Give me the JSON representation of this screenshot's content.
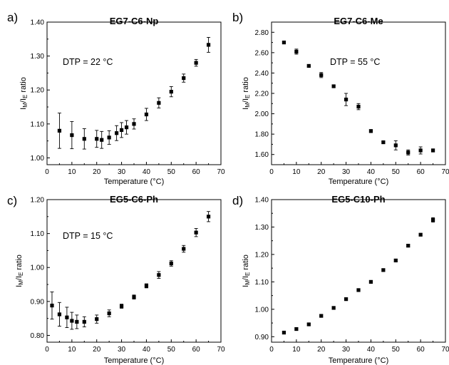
{
  "chart_data": [
    {
      "panel": "a)",
      "type": "scatter",
      "title": "EG7-C6-Np",
      "annotation": "DTP = 22 °C",
      "xlabel": "Temperature (°C)",
      "ylabel_main": "I",
      "ylabel_sub1": "M",
      "ylabel_sep": "/I",
      "ylabel_sub2": "E",
      "ylabel_end": " ratio",
      "xlim": [
        0,
        70
      ],
      "ylim": [
        0.98,
        1.4
      ],
      "xticks": [
        0,
        10,
        20,
        30,
        40,
        50,
        60,
        70
      ],
      "yticks": [
        1.0,
        1.1,
        1.2,
        1.3,
        1.4
      ],
      "ytick_labels": [
        "1.00",
        "1.10",
        "1.20",
        "1.30",
        "1.40"
      ],
      "points": [
        {
          "x": 5,
          "y": 1.08,
          "err": 0.052
        },
        {
          "x": 10,
          "y": 1.067,
          "err": 0.04
        },
        {
          "x": 15,
          "y": 1.056,
          "err": 0.03
        },
        {
          "x": 20,
          "y": 1.056,
          "err": 0.025
        },
        {
          "x": 22,
          "y": 1.053,
          "err": 0.025
        },
        {
          "x": 25,
          "y": 1.06,
          "err": 0.02
        },
        {
          "x": 28,
          "y": 1.073,
          "err": 0.022
        },
        {
          "x": 30,
          "y": 1.082,
          "err": 0.022
        },
        {
          "x": 32,
          "y": 1.09,
          "err": 0.02
        },
        {
          "x": 35,
          "y": 1.1,
          "err": 0.015
        },
        {
          "x": 40,
          "y": 1.128,
          "err": 0.018
        },
        {
          "x": 45,
          "y": 1.162,
          "err": 0.015
        },
        {
          "x": 50,
          "y": 1.195,
          "err": 0.015
        },
        {
          "x": 55,
          "y": 1.235,
          "err": 0.012
        },
        {
          "x": 60,
          "y": 1.28,
          "err": 0.01
        },
        {
          "x": 65,
          "y": 1.333,
          "err": 0.022
        }
      ]
    },
    {
      "panel": "b)",
      "type": "scatter",
      "title": "EG7-C6-Me",
      "annotation": "DTP = 55 °C",
      "xlabel": "Temperature (°C)",
      "ylabel_main": "I",
      "ylabel_sub1": "M",
      "ylabel_sep": "/I",
      "ylabel_sub2": "E",
      "ylabel_end": " ratio",
      "xlim": [
        0,
        70
      ],
      "ylim": [
        1.5,
        2.9
      ],
      "xticks": [
        0,
        10,
        20,
        30,
        40,
        50,
        60,
        70
      ],
      "yticks": [
        1.6,
        1.8,
        2.0,
        2.2,
        2.4,
        2.6,
        2.8
      ],
      "ytick_labels": [
        "1.60",
        "1.80",
        "2.00",
        "2.20",
        "2.40",
        "2.60",
        "2.80"
      ],
      "points": [
        {
          "x": 5,
          "y": 2.7,
          "err": 0.01
        },
        {
          "x": 10,
          "y": 2.61,
          "err": 0.025
        },
        {
          "x": 15,
          "y": 2.47,
          "err": 0.01
        },
        {
          "x": 20,
          "y": 2.38,
          "err": 0.025
        },
        {
          "x": 25,
          "y": 2.27,
          "err": 0.01
        },
        {
          "x": 30,
          "y": 2.14,
          "err": 0.06
        },
        {
          "x": 35,
          "y": 2.07,
          "err": 0.03
        },
        {
          "x": 40,
          "y": 1.83,
          "err": 0.015
        },
        {
          "x": 45,
          "y": 1.72,
          "err": 0.01
        },
        {
          "x": 50,
          "y": 1.69,
          "err": 0.045
        },
        {
          "x": 55,
          "y": 1.62,
          "err": 0.025
        },
        {
          "x": 60,
          "y": 1.64,
          "err": 0.035
        },
        {
          "x": 65,
          "y": 1.64,
          "err": 0.015
        }
      ]
    },
    {
      "panel": "c)",
      "type": "scatter",
      "title": "EG5-C6-Ph",
      "annotation": "DTP = 15 °C",
      "xlabel": "Temperature (°C)",
      "ylabel_main": "I",
      "ylabel_sub1": "M",
      "ylabel_sep": "/I",
      "ylabel_sub2": "E",
      "ylabel_end": " ratio",
      "xlim": [
        0,
        70
      ],
      "ylim": [
        0.78,
        1.2
      ],
      "xticks": [
        0,
        10,
        20,
        30,
        40,
        50,
        60,
        70
      ],
      "yticks": [
        0.8,
        0.9,
        1.0,
        1.1,
        1.2
      ],
      "ytick_labels": [
        "0.80",
        "0.90",
        "1.00",
        "1.10",
        "1.20"
      ],
      "points": [
        {
          "x": 2,
          "y": 0.888,
          "err": 0.04
        },
        {
          "x": 5,
          "y": 0.862,
          "err": 0.035
        },
        {
          "x": 8,
          "y": 0.853,
          "err": 0.03
        },
        {
          "x": 10,
          "y": 0.843,
          "err": 0.025
        },
        {
          "x": 12,
          "y": 0.84,
          "err": 0.02
        },
        {
          "x": 15,
          "y": 0.84,
          "err": 0.015
        },
        {
          "x": 20,
          "y": 0.848,
          "err": 0.012
        },
        {
          "x": 25,
          "y": 0.865,
          "err": 0.01
        },
        {
          "x": 30,
          "y": 0.886,
          "err": 0.006
        },
        {
          "x": 35,
          "y": 0.913,
          "err": 0.006
        },
        {
          "x": 40,
          "y": 0.946,
          "err": 0.006
        },
        {
          "x": 45,
          "y": 0.978,
          "err": 0.01
        },
        {
          "x": 50,
          "y": 1.012,
          "err": 0.008
        },
        {
          "x": 55,
          "y": 1.055,
          "err": 0.01
        },
        {
          "x": 60,
          "y": 1.103,
          "err": 0.012
        },
        {
          "x": 65,
          "y": 1.15,
          "err": 0.015
        }
      ]
    },
    {
      "panel": "d)",
      "type": "scatter",
      "title": "EG5-C10-Ph",
      "annotation": "",
      "xlabel": "Temperature (°C)",
      "ylabel_main": "I",
      "ylabel_sub1": "M",
      "ylabel_sep": "/I",
      "ylabel_sub2": "E",
      "ylabel_end": " ratio",
      "xlim": [
        0,
        70
      ],
      "ylim": [
        0.88,
        1.4
      ],
      "xticks": [
        0,
        10,
        20,
        30,
        40,
        50,
        60,
        70
      ],
      "yticks": [
        0.9,
        1.0,
        1.1,
        1.2,
        1.3,
        1.4
      ],
      "ytick_labels": [
        "0.90",
        "1.00",
        "1.10",
        "1.20",
        "1.30",
        "1.40"
      ],
      "points": [
        {
          "x": 5,
          "y": 0.915,
          "err": 0.004
        },
        {
          "x": 10,
          "y": 0.928,
          "err": 0.004
        },
        {
          "x": 15,
          "y": 0.945,
          "err": 0.004
        },
        {
          "x": 20,
          "y": 0.976,
          "err": 0.004
        },
        {
          "x": 25,
          "y": 1.005,
          "err": 0.004
        },
        {
          "x": 30,
          "y": 1.037,
          "err": 0.004
        },
        {
          "x": 35,
          "y": 1.07,
          "err": 0.004
        },
        {
          "x": 40,
          "y": 1.1,
          "err": 0.004
        },
        {
          "x": 45,
          "y": 1.143,
          "err": 0.004
        },
        {
          "x": 50,
          "y": 1.178,
          "err": 0.004
        },
        {
          "x": 55,
          "y": 1.232,
          "err": 0.004
        },
        {
          "x": 60,
          "y": 1.272,
          "err": 0.004
        },
        {
          "x": 65,
          "y": 1.326,
          "err": 0.008
        }
      ]
    }
  ]
}
